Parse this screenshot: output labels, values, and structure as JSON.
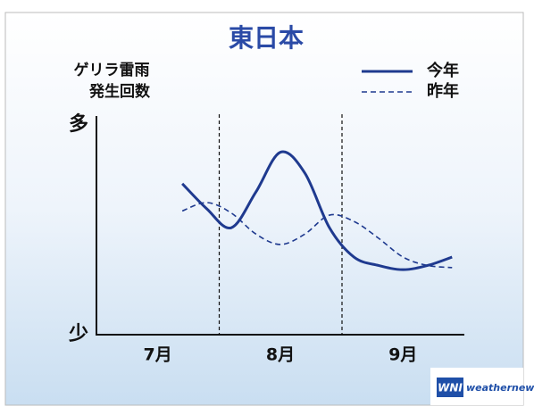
{
  "chart_data": {
    "type": "line",
    "title": "東日本",
    "ylabel": [
      "ゲリラ雷雨",
      "発生回数"
    ],
    "categories": [
      null,
      null,
      "7月",
      null,
      null,
      null,
      null,
      "8月",
      null,
      null,
      null,
      null,
      "9月",
      null,
      null
    ],
    "series": [
      {
        "name": "今年",
        "color": "#1f3a8f",
        "style": "solid",
        "values": [
          null,
          null,
          null,
          72,
          60,
          51,
          68,
          87,
          77,
          51,
          37,
          33,
          31,
          33,
          37
        ]
      },
      {
        "name": "昨年",
        "color": "#1f3a8f",
        "style": "dashed",
        "values": [
          null,
          null,
          null,
          59,
          63,
          58,
          48,
          43,
          48,
          57,
          54,
          46,
          37,
          33,
          32
        ]
      }
    ],
    "ylim": [
      0,
      100
    ],
    "yticks": [
      {
        "value": 100,
        "label": "多"
      },
      {
        "value": 0,
        "label": "少"
      }
    ],
    "legend": "top-right"
  },
  "logo": {
    "mark": "WNI",
    "text": "weathernews"
  }
}
